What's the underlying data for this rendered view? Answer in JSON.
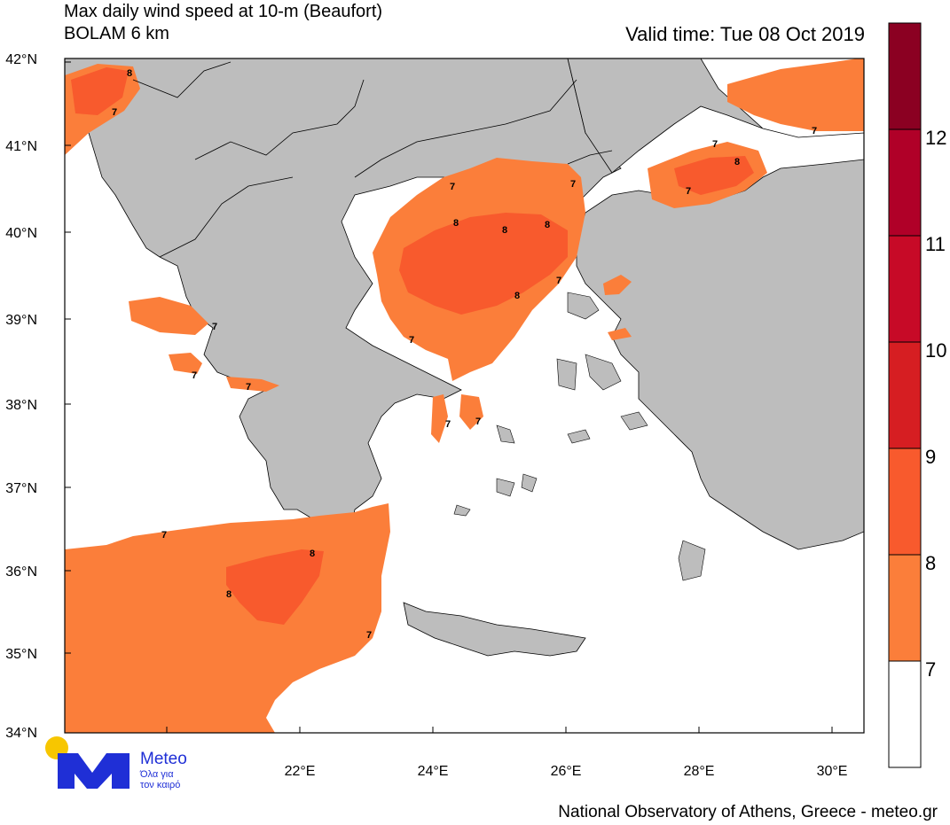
{
  "title_line1": "Max daily wind speed at 10-m (Beaufort)",
  "title_line2": "BOLAM 6 km",
  "valid_time": "Valid time: Tue 08 Oct 2019",
  "lat_labels": [
    "42°N",
    "41°N",
    "40°N",
    "39°N",
    "38°N",
    "37°N",
    "36°N",
    "35°N",
    "34°N"
  ],
  "lon_labels": [
    "22°E",
    "24°E",
    "26°E",
    "28°E",
    "30°E"
  ],
  "colorbar": {
    "labels": [
      "12",
      "11",
      "10",
      "9",
      "8",
      "7"
    ],
    "colors": [
      "#8b0022",
      "#b00028",
      "#d61e22",
      "#f85a2d",
      "#fb7e3a",
      "#ffffff"
    ]
  },
  "colors": {
    "land": "#bdbdbd",
    "sea": "#ffffff",
    "bft8": "#fb7e3a",
    "bft9": "#f85a2d"
  },
  "contour_labels": [
    "8",
    "7",
    "7",
    "7",
    "7",
    "7",
    "8",
    "8",
    "8",
    "8",
    "7",
    "7",
    "8",
    "7",
    "7",
    "7",
    "7",
    "7",
    "7",
    "7",
    "8",
    "8",
    "7"
  ],
  "logo": {
    "name": "Meteo",
    "tagline_1": "Όλα για",
    "tagline_2": "τον καιρό"
  },
  "footer": "National Observatory of Athens, Greece - meteo.gr"
}
